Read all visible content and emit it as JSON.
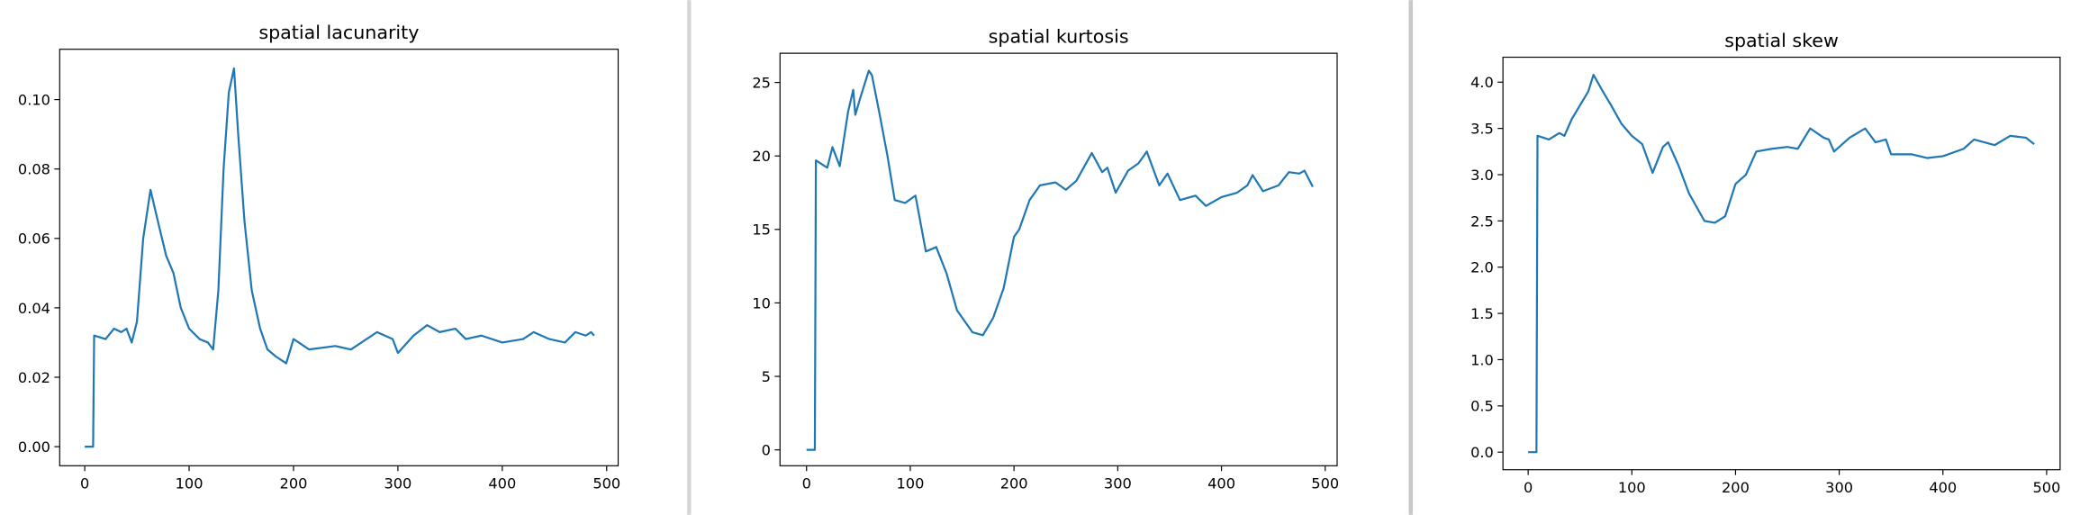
{
  "chart_data": [
    {
      "type": "line",
      "title": "spatial lacunarity",
      "color": "#1f77b4",
      "x": [
        0,
        8,
        9,
        20,
        28,
        35,
        40,
        45,
        50,
        56,
        63,
        70,
        78,
        85,
        92,
        100,
        110,
        118,
        123,
        128,
        133,
        138,
        143,
        147,
        153,
        160,
        168,
        175,
        183,
        193,
        200,
        215,
        240,
        255,
        280,
        295,
        300,
        315,
        328,
        340,
        355,
        365,
        380,
        400,
        420,
        430,
        445,
        460,
        470,
        480,
        485,
        488
      ],
      "values": [
        0,
        0,
        0.032,
        0.031,
        0.034,
        0.033,
        0.034,
        0.03,
        0.036,
        0.06,
        0.074,
        0.065,
        0.055,
        0.05,
        0.04,
        0.034,
        0.031,
        0.03,
        0.028,
        0.045,
        0.08,
        0.102,
        0.109,
        0.09,
        0.065,
        0.045,
        0.034,
        0.028,
        0.026,
        0.024,
        0.031,
        0.028,
        0.029,
        0.028,
        0.033,
        0.031,
        0.027,
        0.032,
        0.035,
        0.033,
        0.034,
        0.031,
        0.032,
        0.03,
        0.031,
        0.033,
        0.031,
        0.03,
        0.033,
        0.032,
        0.033,
        0.032
      ],
      "xlim": [
        -24,
        511
      ],
      "xticks": [
        0,
        100,
        200,
        300,
        400,
        500
      ],
      "ylim": [
        -0.0055,
        0.1145
      ],
      "yticks": [
        {
          "value": 0,
          "label": "0.00"
        },
        {
          "value": 0.02,
          "label": "0.02"
        },
        {
          "value": 0.04,
          "label": "0.04"
        },
        {
          "value": 0.06,
          "label": "0.06"
        },
        {
          "value": 0.08,
          "label": "0.08"
        },
        {
          "value": 0.1,
          "label": "0.10"
        }
      ]
    },
    {
      "type": "line",
      "title": "spatial kurtosis",
      "color": "#1f77b4",
      "x": [
        0,
        8,
        9,
        20,
        25,
        32,
        40,
        45,
        47,
        52,
        60,
        63,
        70,
        78,
        85,
        95,
        105,
        115,
        125,
        135,
        145,
        160,
        170,
        180,
        190,
        200,
        205,
        215,
        225,
        240,
        250,
        260,
        275,
        285,
        290,
        298,
        310,
        320,
        328,
        340,
        348,
        360,
        375,
        385,
        400,
        415,
        425,
        430,
        440,
        455,
        465,
        475,
        480,
        488
      ],
      "values": [
        0,
        0,
        19.7,
        19.2,
        20.6,
        19.3,
        23,
        24.5,
        22.8,
        24,
        25.8,
        25.5,
        23,
        20,
        17,
        16.8,
        17.3,
        13.5,
        13.8,
        12,
        9.5,
        8,
        7.8,
        9,
        11,
        14.5,
        15,
        17,
        18,
        18.2,
        17.7,
        18.3,
        20.2,
        18.9,
        19.2,
        17.5,
        19,
        19.5,
        20.3,
        18,
        18.8,
        17,
        17.3,
        16.6,
        17.2,
        17.5,
        18,
        18.7,
        17.6,
        18,
        18.9,
        18.8,
        19,
        17.9
      ],
      "xlim": [
        -25.6,
        511.5
      ],
      "xticks": [
        0,
        100,
        200,
        300,
        400,
        500
      ],
      "ylim": [
        -1.08,
        26.99
      ],
      "yticks": [
        0,
        5,
        10,
        15,
        20,
        25
      ]
    },
    {
      "type": "line",
      "title": "spatial skew",
      "color": "#1f77b4",
      "x": [
        0,
        8,
        9,
        20,
        30,
        35,
        42,
        50,
        58,
        63,
        72,
        80,
        90,
        100,
        110,
        120,
        130,
        135,
        145,
        155,
        170,
        180,
        190,
        200,
        210,
        220,
        235,
        250,
        260,
        272,
        285,
        290,
        295,
        310,
        325,
        335,
        345,
        350,
        370,
        385,
        400,
        420,
        430,
        450,
        465,
        480,
        488
      ],
      "values": [
        0,
        0,
        3.42,
        3.38,
        3.45,
        3.42,
        3.6,
        3.75,
        3.9,
        4.08,
        3.9,
        3.75,
        3.55,
        3.42,
        3.33,
        3.02,
        3.3,
        3.35,
        3.1,
        2.8,
        2.5,
        2.48,
        2.55,
        2.9,
        3.0,
        3.25,
        3.28,
        3.3,
        3.28,
        3.5,
        3.4,
        3.38,
        3.25,
        3.4,
        3.5,
        3.35,
        3.38,
        3.22,
        3.22,
        3.18,
        3.2,
        3.28,
        3.38,
        3.32,
        3.42,
        3.4,
        3.33
      ],
      "xlim": [
        -24.3,
        513
      ],
      "xticks": [
        0,
        100,
        200,
        300,
        400,
        500
      ],
      "ylim": [
        -0.19,
        4.27
      ],
      "yticks": [
        {
          "value": 0,
          "label": "0.0"
        },
        0.5,
        {
          "value": 1,
          "label": "1.0"
        },
        1.5,
        {
          "value": 2,
          "label": "2.0"
        },
        2.5,
        {
          "value": 3,
          "label": "3.0"
        },
        3.5,
        {
          "value": 4,
          "label": "4.0"
        }
      ]
    }
  ]
}
